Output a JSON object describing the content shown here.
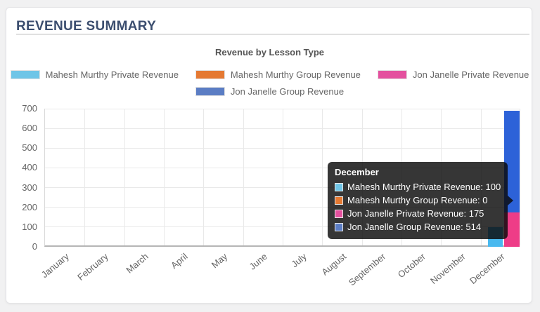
{
  "page": {
    "title": "REVENUE SUMMARY"
  },
  "ui": {
    "header_text_color": "#3c4e6f",
    "card_background": "#ffffff",
    "page_background": "#f1f1f2",
    "tooltip_background": "rgba(10,10,10,0.82)"
  },
  "chart_data": {
    "type": "bar",
    "title": "Revenue by Lesson Type",
    "categories": [
      "January",
      "February",
      "March",
      "April",
      "May",
      "June",
      "July",
      "August",
      "September",
      "October",
      "November",
      "December"
    ],
    "series": [
      {
        "name": "Mahesh Murthy Private Revenue",
        "color": "#6fc5e7",
        "hover_color": "#49b9ef",
        "stack": "mahesh",
        "values": [
          0,
          0,
          0,
          0,
          0,
          0,
          0,
          0,
          0,
          0,
          0,
          100
        ]
      },
      {
        "name": "Mahesh Murthy Group Revenue",
        "color": "#e57932",
        "hover_color": "#e57932",
        "stack": "mahesh",
        "values": [
          0,
          0,
          0,
          0,
          0,
          0,
          0,
          0,
          0,
          0,
          0,
          0
        ]
      },
      {
        "name": "Jon Janelle Private Revenue",
        "color": "#e4509e",
        "hover_color": "#ee3c87",
        "stack": "jon",
        "values": [
          0,
          0,
          0,
          0,
          0,
          0,
          0,
          0,
          0,
          0,
          0,
          175
        ]
      },
      {
        "name": "Jon Janelle Group Revenue",
        "color": "#5b7dc4",
        "hover_color": "#2d62d8",
        "stack": "jon",
        "values": [
          0,
          0,
          0,
          0,
          0,
          0,
          0,
          0,
          0,
          0,
          0,
          514
        ]
      }
    ],
    "y_ticks": [
      0,
      100,
      200,
      300,
      400,
      500,
      600,
      700
    ],
    "ylim": [
      0,
      700
    ],
    "grid": true,
    "legend_position": "top",
    "x_tick_rotation": -40
  },
  "tooltip": {
    "title": "December",
    "rows": [
      {
        "text": "Mahesh Murthy Private Revenue: 100",
        "color": "#6fc5e7"
      },
      {
        "text": "Mahesh Murthy Group Revenue: 0",
        "color": "#e57932"
      },
      {
        "text": "Jon Janelle Private Revenue: 175",
        "color": "#e4509e"
      },
      {
        "text": "Jon Janelle Group Revenue: 514",
        "color": "#5b7dc4"
      }
    ]
  }
}
